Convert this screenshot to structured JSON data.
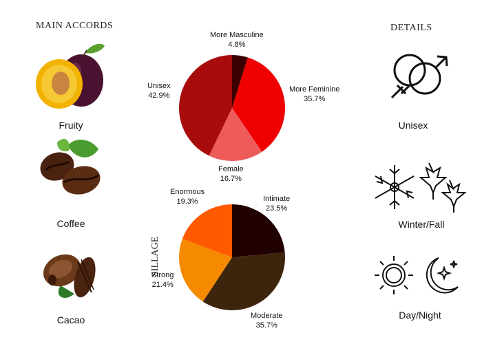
{
  "left": {
    "title": "MAIN ACCORDS",
    "accords": [
      {
        "label": "Fruity",
        "icon": "plum-icon"
      },
      {
        "label": "Coffee",
        "icon": "coffee-bean-icon"
      },
      {
        "label": "Cacao",
        "icon": "cacao-pod-icon"
      }
    ]
  },
  "right": {
    "title": "DETAILS",
    "details": [
      {
        "label": "Unisex",
        "icon": "gender-symbols-icon"
      },
      {
        "label": "Winter/Fall",
        "icon": "snowflake-leaves-icon"
      },
      {
        "label": "Day/Night",
        "icon": "sun-moon-icon"
      }
    ]
  },
  "chart_data": [
    {
      "type": "pie",
      "title": "",
      "slices": [
        {
          "label": "More Masculine",
          "value": 4.8,
          "display": "4.8%",
          "color": "#3b0000"
        },
        {
          "label": "More Feminine",
          "value": 35.7,
          "display": "35.7%",
          "color": "#ee0000"
        },
        {
          "label": "Female",
          "value": 16.7,
          "display": "16.7%",
          "color": "#ee5b5b"
        },
        {
          "label": "Unisex",
          "value": 42.9,
          "display": "42.9%",
          "color": "#a80c0c"
        }
      ]
    },
    {
      "type": "pie",
      "title": "SILLAGE",
      "slices": [
        {
          "label": "Intimate",
          "value": 23.5,
          "display": "23.5%",
          "color": "#200000"
        },
        {
          "label": "Moderate",
          "value": 35.7,
          "display": "35.7%",
          "color": "#3d240c"
        },
        {
          "label": "Strong",
          "value": 21.4,
          "display": "21.4%",
          "color": "#f58a00"
        },
        {
          "label": "Enormous",
          "value": 19.3,
          "display": "19.3%",
          "color": "#ff5a00"
        }
      ]
    }
  ]
}
